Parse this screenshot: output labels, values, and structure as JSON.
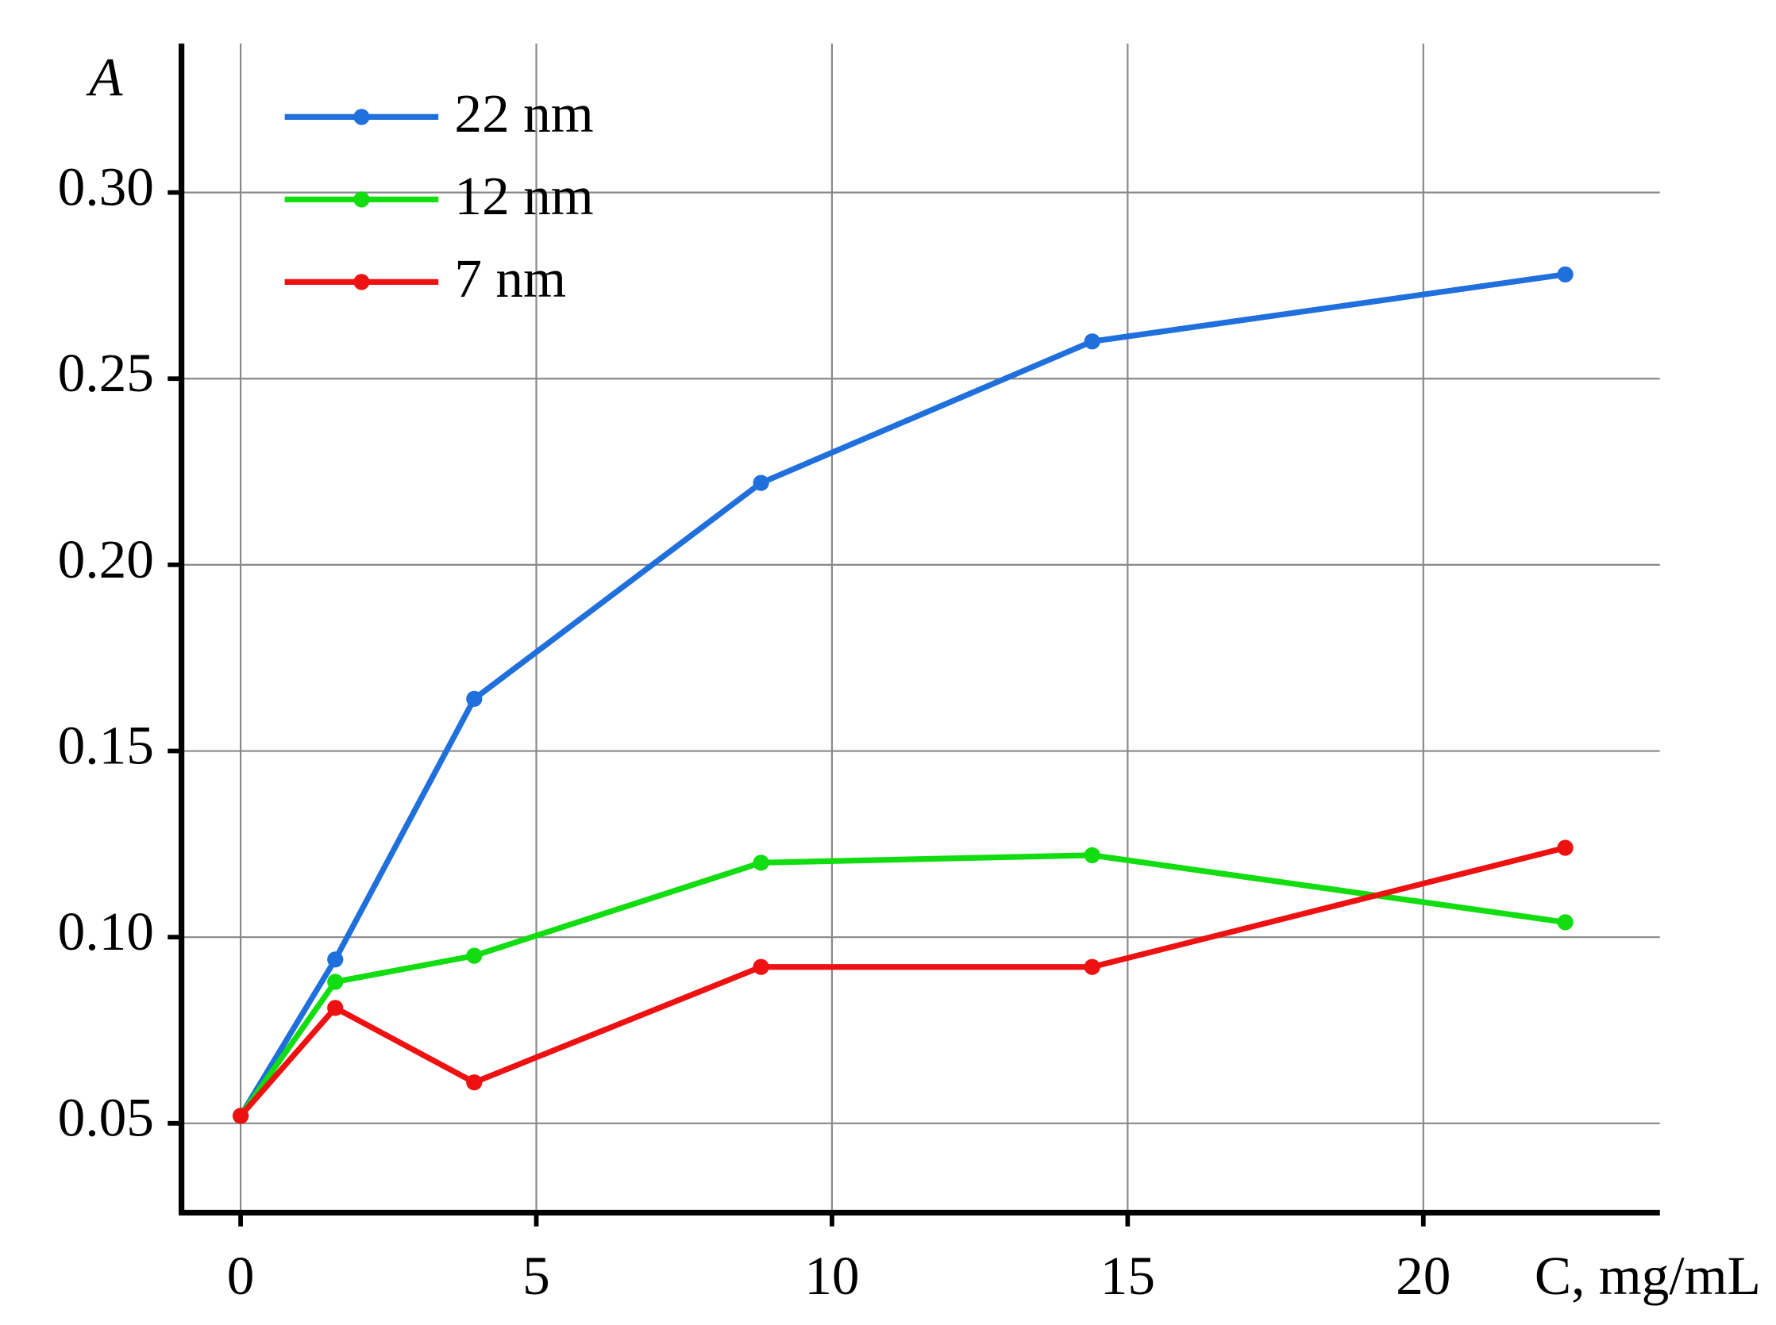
{
  "chart_data": {
    "type": "line",
    "x_label": "C, mg/mL",
    "y_label": "A",
    "x": [
      0,
      1.6,
      3.95,
      8.8,
      14.4,
      22.4
    ],
    "series": [
      {
        "name": "22 nm",
        "color": "#1f6fdc",
        "values": [
          0.052,
          0.094,
          0.164,
          0.222,
          0.26,
          0.278
        ]
      },
      {
        "name": "12 nm",
        "color": "#11dd11",
        "values": [
          0.052,
          0.088,
          0.095,
          0.12,
          0.122,
          0.104
        ]
      },
      {
        "name": "7 nm",
        "color": "#ee1111",
        "values": [
          0.052,
          0.081,
          0.061,
          0.092,
          0.092,
          0.124
        ]
      }
    ],
    "xlim": [
      -1,
      24
    ],
    "ylim": [
      0.026,
      0.34
    ],
    "xticks": [
      0,
      5,
      10,
      15,
      20
    ],
    "yticks": [
      {
        "value": 0.05,
        "label": "0.05"
      },
      {
        "value": 0.1,
        "label": "0.10"
      },
      {
        "value": 0.15,
        "label": "0.15"
      },
      {
        "value": 0.2,
        "label": "0.20"
      },
      {
        "value": 0.25,
        "label": "0.25"
      },
      {
        "value": 0.3,
        "label": "0.30"
      }
    ],
    "grid": true,
    "legend": "upper-left"
  }
}
